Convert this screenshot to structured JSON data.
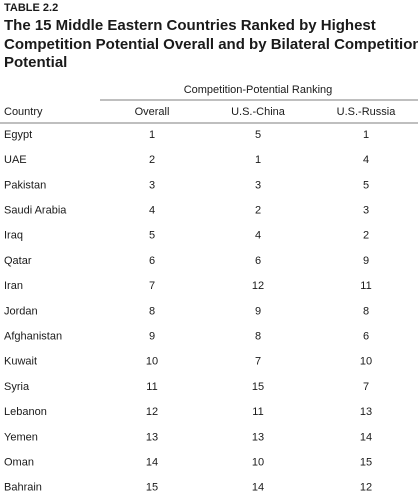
{
  "table": {
    "label": "TABLE 2.2",
    "title_lines": [
      "The 15 Middle Eastern Countries Ranked by Highest",
      "Competition Potential Overall and by Bilateral Competition",
      "Potential"
    ],
    "group_header": "Competition-Potential Ranking",
    "columns": [
      "Country",
      "Overall",
      "U.S.-China",
      "U.S.-Russia"
    ],
    "rows": [
      [
        "Egypt",
        1,
        5,
        1
      ],
      [
        "UAE",
        2,
        1,
        4
      ],
      [
        "Pakistan",
        3,
        3,
        5
      ],
      [
        "Saudi Arabia",
        4,
        2,
        3
      ],
      [
        "Iraq",
        5,
        4,
        2
      ],
      [
        "Qatar",
        6,
        6,
        9
      ],
      [
        "Iran",
        7,
        12,
        11
      ],
      [
        "Jordan",
        8,
        9,
        8
      ],
      [
        "Afghanistan",
        9,
        8,
        6
      ],
      [
        "Kuwait",
        10,
        7,
        10
      ],
      [
        "Syria",
        11,
        15,
        7
      ],
      [
        "Lebanon",
        12,
        11,
        13
      ],
      [
        "Yemen",
        13,
        13,
        14
      ],
      [
        "Oman",
        14,
        10,
        15
      ],
      [
        "Bahrain",
        15,
        14,
        12
      ]
    ]
  }
}
